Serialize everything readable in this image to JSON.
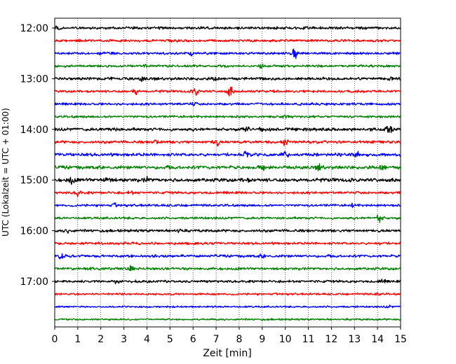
{
  "chart_data": {
    "type": "line",
    "title": "",
    "xlabel": "Zeit  [min]",
    "ylabel": "UTC (Lokalzeit = UTC + 01:00)",
    "xlim": [
      0,
      15
    ],
    "x_ticks": [
      "0",
      "1",
      "2",
      "3",
      "4",
      "5",
      "6",
      "7",
      "8",
      "9",
      "10",
      "11",
      "12",
      "13",
      "14",
      "15"
    ],
    "y_tick_labels": [
      "12:00",
      "13:00",
      "14:00",
      "15:00",
      "16:00",
      "17:00"
    ],
    "grid": "vertical dotted lines at each minute",
    "trace_interval_minutes": 15,
    "first_trace_start": "12:00",
    "colors_cycle": [
      "#000000",
      "#ff0000",
      "#0000ff",
      "#008000"
    ],
    "traces": [
      {
        "start": "12:00",
        "color": "#000000",
        "amplitude": 2.2,
        "events": [
          {
            "t": 0.1,
            "amp": 3
          },
          {
            "t": 4.5,
            "amp": 2
          },
          {
            "t": 10.8,
            "amp": 2
          }
        ]
      },
      {
        "start": "12:15",
        "color": "#ff0000",
        "amplitude": 2.0,
        "events": [
          {
            "t": 1.0,
            "amp": 2
          },
          {
            "t": 5.2,
            "amp": 2
          }
        ]
      },
      {
        "start": "12:30",
        "color": "#0000ff",
        "amplitude": 2.0,
        "events": [
          {
            "t": 2.0,
            "amp": 2
          },
          {
            "t": 5.9,
            "amp": 3
          },
          {
            "t": 10.4,
            "amp": 9
          }
        ]
      },
      {
        "start": "12:45",
        "color": "#008000",
        "amplitude": 2.0,
        "events": [
          {
            "t": 3.9,
            "amp": 2
          },
          {
            "t": 9.0,
            "amp": 2
          }
        ]
      },
      {
        "start": "13:00",
        "color": "#000000",
        "amplitude": 2.4,
        "events": [
          {
            "t": 3.8,
            "amp": 3
          },
          {
            "t": 7.0,
            "amp": 4
          },
          {
            "t": 14.6,
            "amp": 2
          }
        ]
      },
      {
        "start": "13:15",
        "color": "#ff0000",
        "amplitude": 2.0,
        "events": [
          {
            "t": 3.5,
            "amp": 5
          },
          {
            "t": 6.1,
            "amp": 7
          },
          {
            "t": 7.6,
            "amp": 8
          }
        ]
      },
      {
        "start": "13:30",
        "color": "#0000ff",
        "amplitude": 2.0,
        "events": [
          {
            "t": 6.0,
            "amp": 2
          }
        ]
      },
      {
        "start": "13:45",
        "color": "#008000",
        "amplitude": 2.0,
        "events": [
          {
            "t": 10.0,
            "amp": 2
          }
        ]
      },
      {
        "start": "14:00",
        "color": "#000000",
        "amplitude": 2.6,
        "events": [
          {
            "t": 2.5,
            "amp": 4
          },
          {
            "t": 8.3,
            "amp": 3
          },
          {
            "t": 9.0,
            "amp": 3
          },
          {
            "t": 14.5,
            "amp": 7
          }
        ]
      },
      {
        "start": "14:15",
        "color": "#ff0000",
        "amplitude": 2.2,
        "events": [
          {
            "t": 4.4,
            "amp": 4
          },
          {
            "t": 7.0,
            "amp": 6
          },
          {
            "t": 10.0,
            "amp": 4
          }
        ]
      },
      {
        "start": "14:30",
        "color": "#0000ff",
        "amplitude": 2.6,
        "events": [
          {
            "t": 8.3,
            "amp": 4
          },
          {
            "t": 10.0,
            "amp": 4
          },
          {
            "t": 13.1,
            "amp": 4
          }
        ]
      },
      {
        "start": "14:45",
        "color": "#008000",
        "amplitude": 2.8,
        "events": [
          {
            "t": 9.0,
            "amp": 5
          },
          {
            "t": 11.5,
            "amp": 5
          },
          {
            "t": 14.2,
            "amp": 6
          }
        ]
      },
      {
        "start": "15:00",
        "color": "#000000",
        "amplitude": 3.0,
        "events": [
          {
            "t": 0.7,
            "amp": 6
          },
          {
            "t": 2.3,
            "amp": 7
          },
          {
            "t": 4.0,
            "amp": 3
          },
          {
            "t": 8.3,
            "amp": 3
          }
        ]
      },
      {
        "start": "15:15",
        "color": "#ff0000",
        "amplitude": 2.0,
        "events": [
          {
            "t": 1.0,
            "amp": 5
          },
          {
            "t": 3.3,
            "amp": 2
          }
        ]
      },
      {
        "start": "15:30",
        "color": "#0000ff",
        "amplitude": 2.0,
        "events": [
          {
            "t": 2.6,
            "amp": 2
          },
          {
            "t": 12.9,
            "amp": 2
          }
        ]
      },
      {
        "start": "15:45",
        "color": "#008000",
        "amplitude": 2.0,
        "events": [
          {
            "t": 14.1,
            "amp": 8
          }
        ]
      },
      {
        "start": "16:00",
        "color": "#000000",
        "amplitude": 2.2,
        "events": [
          {
            "t": 0.6,
            "amp": 4
          },
          {
            "t": 5.4,
            "amp": 3
          }
        ]
      },
      {
        "start": "16:15",
        "color": "#ff0000",
        "amplitude": 2.0,
        "events": [
          {
            "t": 14.1,
            "amp": 2
          }
        ]
      },
      {
        "start": "16:30",
        "color": "#0000ff",
        "amplitude": 2.2,
        "events": [
          {
            "t": 0.3,
            "amp": 4
          },
          {
            "t": 9.0,
            "amp": 2
          }
        ]
      },
      {
        "start": "16:45",
        "color": "#008000",
        "amplitude": 2.2,
        "events": [
          {
            "t": 1.6,
            "amp": 3
          },
          {
            "t": 3.3,
            "amp": 3
          }
        ]
      },
      {
        "start": "17:00",
        "color": "#000000",
        "amplitude": 2.0,
        "events": [
          {
            "t": 2.7,
            "amp": 4
          },
          {
            "t": 14.2,
            "amp": 3
          }
        ]
      },
      {
        "start": "17:15",
        "color": "#ff0000",
        "amplitude": 1.6,
        "events": [
          {
            "t": 14.0,
            "amp": 2
          }
        ]
      },
      {
        "start": "17:30",
        "color": "#0000ff",
        "amplitude": 1.5,
        "events": [
          {
            "t": 14.5,
            "amp": 2
          }
        ]
      },
      {
        "start": "17:45",
        "color": "#008000",
        "amplitude": 1.5,
        "events": []
      }
    ]
  }
}
